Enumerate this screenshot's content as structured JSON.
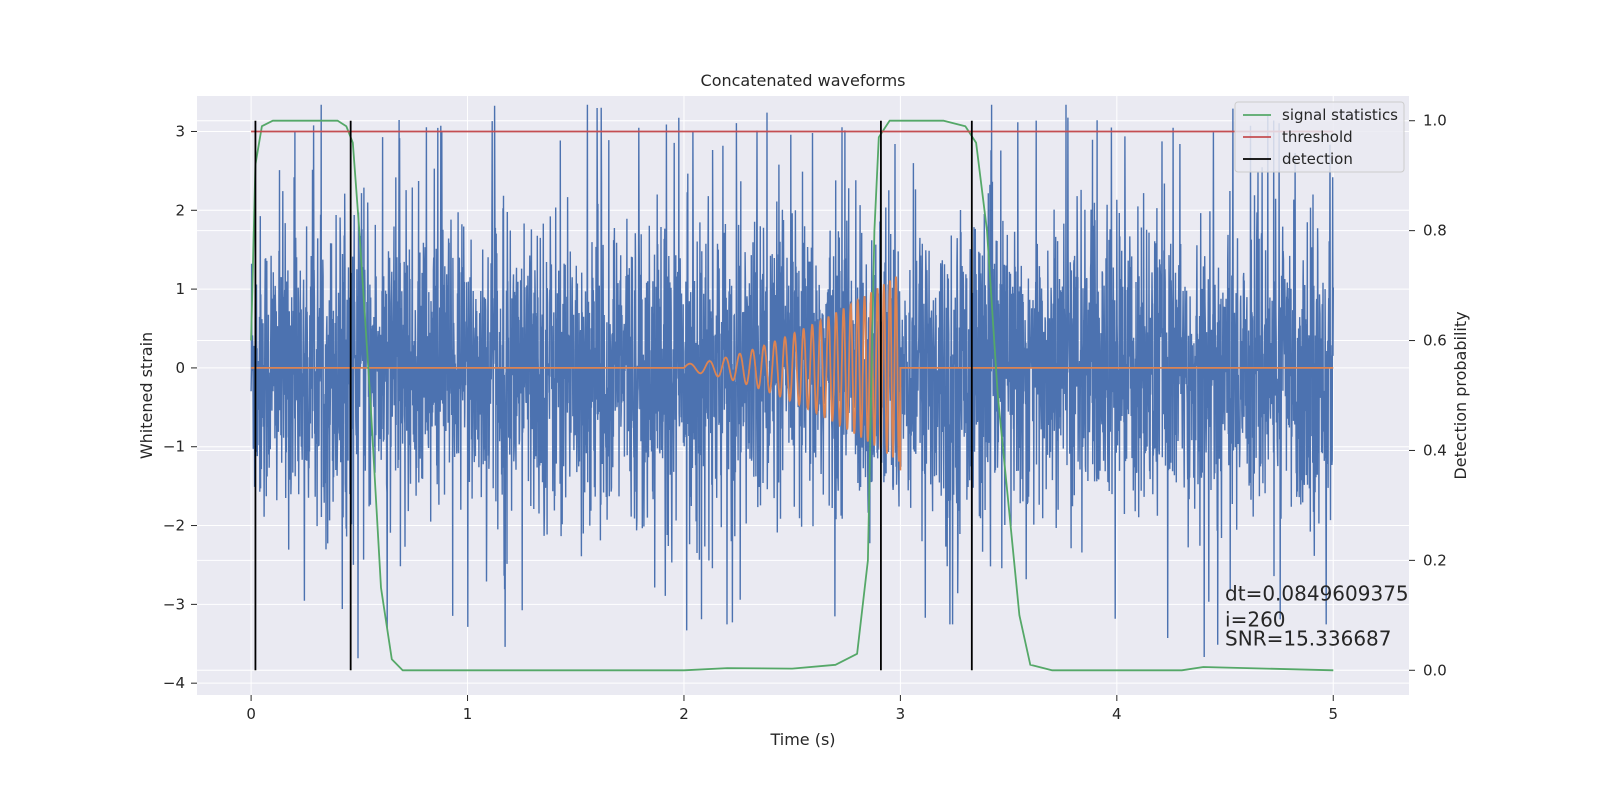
{
  "chart_data": {
    "type": "line",
    "title": "Concatenated waveforms",
    "xlabel": "Time (s)",
    "ylabel": "Whitened strain",
    "y2label": "Detection probability",
    "xlim": [
      -0.25,
      5.35
    ],
    "ylim": [
      -4.15,
      3.45
    ],
    "y2lim": [
      -0.045,
      1.045
    ],
    "x_ticks": [
      0,
      1,
      2,
      3,
      4,
      5
    ],
    "y_ticks": [
      -4,
      -3,
      -2,
      -1,
      0,
      1,
      2,
      3
    ],
    "y2_ticks": [
      0.0,
      0.2,
      0.4,
      0.6,
      0.8,
      1.0
    ],
    "x_tick_labels": [
      "0",
      "1",
      "2",
      "3",
      "4",
      "5"
    ],
    "y_tick_labels": [
      "−4",
      "−3",
      "−2",
      "−1",
      "0",
      "1",
      "2",
      "3"
    ],
    "y2_tick_labels": [
      "0.0",
      "0.2",
      "0.4",
      "0.6",
      "0.8",
      "1.0"
    ],
    "grid": true,
    "legend_position": "top-right",
    "colors": {
      "background": "#eaeaf2",
      "grid": "#ffffff",
      "noise": "#4c72b0",
      "waveform": "#dd8452",
      "signal_statistics": "#55a868",
      "threshold": "#c44e52",
      "detection": "#000000"
    },
    "series": [
      {
        "name": "signal statistics",
        "axis": "right",
        "x": [
          0.0,
          0.02,
          0.05,
          0.1,
          0.2,
          0.3,
          0.4,
          0.44,
          0.47,
          0.5,
          0.55,
          0.6,
          0.65,
          0.7,
          1.0,
          1.5,
          2.0,
          2.2,
          2.5,
          2.7,
          2.8,
          2.85,
          2.88,
          2.9,
          2.95,
          3.0,
          3.2,
          3.3,
          3.35,
          3.4,
          3.45,
          3.5,
          3.55,
          3.6,
          3.7,
          4.0,
          4.3,
          4.4,
          5.0
        ],
        "values": [
          0.6,
          0.92,
          0.99,
          1.0,
          1.0,
          1.0,
          1.0,
          0.99,
          0.96,
          0.8,
          0.5,
          0.15,
          0.02,
          0.0,
          0.0,
          0.0,
          0.0,
          0.004,
          0.003,
          0.01,
          0.03,
          0.2,
          0.8,
          0.97,
          1.0,
          1.0,
          1.0,
          0.99,
          0.96,
          0.8,
          0.5,
          0.3,
          0.1,
          0.01,
          0.0,
          0.0,
          0.0,
          0.006,
          0.0
        ]
      },
      {
        "name": "threshold",
        "axis": "left",
        "x": [
          0,
          5
        ],
        "values": [
          3.0,
          3.0
        ]
      },
      {
        "name": "detection",
        "axis": "right",
        "x_positions": [
          0.02,
          0.46,
          2.91,
          3.33
        ],
        "range": [
          0.0,
          1.0
        ]
      },
      {
        "axis": "left",
        "description_free": true,
        "x_range": [
          0,
          5
        ],
        "amplitude": 0.95,
        "peaks": [
          3.34,
          3.34,
          3.3,
          3.3,
          3.34,
          3.3,
          3.34,
          3.3,
          -3.7,
          -3.6,
          -3.65,
          -3.3,
          -3.7,
          -3.4
        ]
      },
      {
        "axis": "left",
        "x_range": [
          2.0,
          3.0
        ],
        "start_amplitude": 0.05,
        "end_amplitude": 1.2,
        "end_value": -1.3
      }
    ],
    "annotations": [
      {
        "text": "dt=0.0849609375",
        "x": 4.5,
        "y": -2.95
      },
      {
        "text": " i=260",
        "x": 4.5,
        "y": -3.28
      },
      {
        "text": "SNR=15.336687",
        "x": 4.5,
        "y": -3.52
      }
    ],
    "legend": [
      "signal statistics",
      "threshold",
      "detection"
    ]
  }
}
